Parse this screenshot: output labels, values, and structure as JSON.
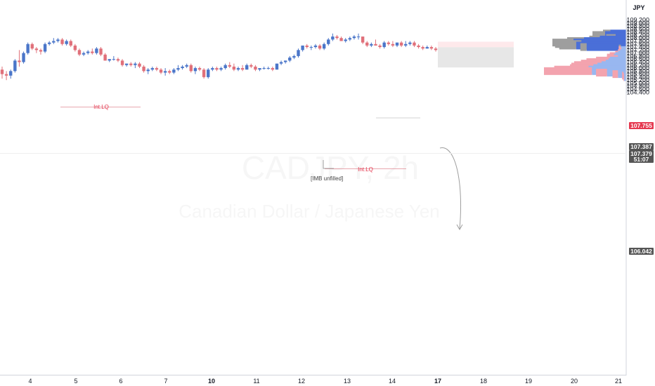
{
  "chart_data": {
    "type": "candlestick",
    "currency": "JPY",
    "watermark_title": "CADJPY, 2h",
    "watermark_subtitle": "Canadian Dollar / Japanese Yen",
    "ylim": [
      104.3,
      109.5
    ],
    "y_ticks": [
      "109.200",
      "109.000",
      "108.800",
      "108.600",
      "108.400",
      "108.200",
      "108.000",
      "107.800",
      "107.600",
      "107.400",
      "107.200",
      "107.000",
      "106.800",
      "106.600",
      "106.400",
      "106.200",
      "106.000",
      "105.800",
      "105.600",
      "105.400",
      "105.200",
      "105.000",
      "104.800",
      "104.600",
      "104.400"
    ],
    "x_ticks": [
      "4",
      "5",
      "6",
      "7",
      "10",
      "11",
      "12",
      "13",
      "14",
      "17",
      "18",
      "19",
      "20",
      "21"
    ],
    "price_tags": [
      {
        "label": "107.755",
        "color": "#e5384f"
      },
      {
        "label": "107.387",
        "color": "#555555"
      },
      {
        "label": "107.379",
        "color": "#555555"
      },
      {
        "label": "51:07",
        "color": "#555555"
      },
      {
        "label": "106.042",
        "color": "#555555"
      }
    ],
    "annotations": [
      "Int.LQ",
      "Int.LQ",
      "[IMB unfilled]"
    ],
    "colors": {
      "up": "#4b76c9",
      "down": "#e0707a",
      "sl_zone": "#fde0e3",
      "tp_zone": "#e3e3e3"
    },
    "candles": [
      [
        105.9,
        106.1,
        105.3,
        105.6
      ],
      [
        105.6,
        105.8,
        105.2,
        105.5
      ],
      [
        105.5,
        105.9,
        105.3,
        105.8
      ],
      [
        105.8,
        106.6,
        105.7,
        106.5
      ],
      [
        106.5,
        107.2,
        106.1,
        106.4
      ],
      [
        106.4,
        107.1,
        106.3,
        107.0
      ],
      [
        107.0,
        107.7,
        106.9,
        107.6
      ],
      [
        107.6,
        107.7,
        107.2,
        107.3
      ],
      [
        107.3,
        107.4,
        107.0,
        107.2
      ],
      [
        107.2,
        107.3,
        106.9,
        107.1
      ],
      [
        107.1,
        107.7,
        107.0,
        107.6
      ],
      [
        107.6,
        107.8,
        107.5,
        107.7
      ],
      [
        107.7,
        108.0,
        107.6,
        107.8
      ],
      [
        107.8,
        108.0,
        107.7,
        107.9
      ],
      [
        107.9,
        108.0,
        107.5,
        107.6
      ],
      [
        107.6,
        107.9,
        107.5,
        107.8
      ],
      [
        107.8,
        107.9,
        107.4,
        107.5
      ],
      [
        107.5,
        107.6,
        107.1,
        107.2
      ],
      [
        107.2,
        107.3,
        106.8,
        106.9
      ],
      [
        106.9,
        107.1,
        106.8,
        107.0
      ],
      [
        107.0,
        107.2,
        106.9,
        107.1
      ],
      [
        107.1,
        107.3,
        106.9,
        107.0
      ],
      [
        107.0,
        107.4,
        106.9,
        107.3
      ],
      [
        107.3,
        107.4,
        106.8,
        106.9
      ],
      [
        106.9,
        107.0,
        106.5,
        106.5
      ],
      [
        106.5,
        106.6,
        106.4,
        106.6
      ],
      [
        106.6,
        106.8,
        106.5,
        106.6
      ],
      [
        106.6,
        106.7,
        106.4,
        106.5
      ],
      [
        106.5,
        106.6,
        106.1,
        106.2
      ],
      [
        106.2,
        106.3,
        106.1,
        106.3
      ],
      [
        106.3,
        106.4,
        106.1,
        106.2
      ],
      [
        106.2,
        106.4,
        106.0,
        106.3
      ],
      [
        106.3,
        106.4,
        106.0,
        106.1
      ],
      [
        106.1,
        106.2,
        105.7,
        105.8
      ],
      [
        105.8,
        106.0,
        105.6,
        105.9
      ],
      [
        105.9,
        106.1,
        105.8,
        106.0
      ],
      [
        106.0,
        106.1,
        105.8,
        105.9
      ],
      [
        105.9,
        106.0,
        105.6,
        105.7
      ],
      [
        105.7,
        106.0,
        105.5,
        105.8
      ],
      [
        105.8,
        105.9,
        105.6,
        105.7
      ],
      [
        105.7,
        106.0,
        105.6,
        105.9
      ],
      [
        105.9,
        106.2,
        105.8,
        106.0
      ],
      [
        106.0,
        106.2,
        105.9,
        106.1
      ],
      [
        106.1,
        106.3,
        106.0,
        106.2
      ],
      [
        106.2,
        106.3,
        105.7,
        105.8
      ],
      [
        105.8,
        106.1,
        105.6,
        106.0
      ],
      [
        106.0,
        106.1,
        105.8,
        105.9
      ],
      [
        105.9,
        106.0,
        105.3,
        105.4
      ],
      [
        105.4,
        106.0,
        105.3,
        105.9
      ],
      [
        105.9,
        106.1,
        105.8,
        106.0
      ],
      [
        106.0,
        106.1,
        105.8,
        105.9
      ],
      [
        105.9,
        106.1,
        105.8,
        106.0
      ],
      [
        106.0,
        106.3,
        105.9,
        106.2
      ],
      [
        106.2,
        106.4,
        106.0,
        106.1
      ],
      [
        106.1,
        106.3,
        105.8,
        105.9
      ],
      [
        105.9,
        106.1,
        105.8,
        106.0
      ],
      [
        106.0,
        106.2,
        105.8,
        105.9
      ],
      [
        105.9,
        106.3,
        105.9,
        106.2
      ],
      [
        106.2,
        106.3,
        106.0,
        106.1
      ],
      [
        106.1,
        106.2,
        105.8,
        105.9
      ],
      [
        105.9,
        106.0,
        105.8,
        106.0
      ],
      [
        106.0,
        106.1,
        105.9,
        106.0
      ],
      [
        106.0,
        106.1,
        105.9,
        106.0
      ],
      [
        106.0,
        106.1,
        105.8,
        105.9
      ],
      [
        105.9,
        106.3,
        105.9,
        106.3
      ],
      [
        106.3,
        106.5,
        106.2,
        106.4
      ],
      [
        106.4,
        106.5,
        106.3,
        106.5
      ],
      [
        106.5,
        106.8,
        106.4,
        106.7
      ],
      [
        106.7,
        106.9,
        106.6,
        106.8
      ],
      [
        106.8,
        107.3,
        106.7,
        107.2
      ],
      [
        107.2,
        107.5,
        107.1,
        107.5
      ],
      [
        107.5,
        107.6,
        107.3,
        107.4
      ],
      [
        107.4,
        107.5,
        107.2,
        107.4
      ],
      [
        107.4,
        107.6,
        107.3,
        107.5
      ],
      [
        107.5,
        107.6,
        107.2,
        107.3
      ],
      [
        107.3,
        107.7,
        107.2,
        107.6
      ],
      [
        107.6,
        108.0,
        107.5,
        107.9
      ],
      [
        107.9,
        108.3,
        107.8,
        108.1
      ],
      [
        108.1,
        108.2,
        107.9,
        108.0
      ],
      [
        108.0,
        108.1,
        107.8,
        107.8
      ],
      [
        107.8,
        108.0,
        107.7,
        107.9
      ],
      [
        107.9,
        108.1,
        107.8,
        108.0
      ],
      [
        108.0,
        108.2,
        107.9,
        108.1
      ],
      [
        108.1,
        108.3,
        107.9,
        108.1
      ],
      [
        108.1,
        108.1,
        107.6,
        107.7
      ],
      [
        107.7,
        107.8,
        107.4,
        107.5
      ],
      [
        107.5,
        107.7,
        107.4,
        107.6
      ],
      [
        107.6,
        107.9,
        107.5,
        107.5
      ],
      [
        107.5,
        107.6,
        107.3,
        107.4
      ],
      [
        107.4,
        107.8,
        107.3,
        107.7
      ],
      [
        107.7,
        107.8,
        107.5,
        107.6
      ],
      [
        107.6,
        107.8,
        107.4,
        107.5
      ],
      [
        107.5,
        107.7,
        107.4,
        107.7
      ],
      [
        107.7,
        107.8,
        107.4,
        107.5
      ],
      [
        107.5,
        107.8,
        107.4,
        107.6
      ],
      [
        107.6,
        107.8,
        107.5,
        107.7
      ],
      [
        107.7,
        107.8,
        107.4,
        107.5
      ],
      [
        107.5,
        107.6,
        107.3,
        107.4
      ],
      [
        107.4,
        107.5,
        107.2,
        107.3
      ],
      [
        107.3,
        107.5,
        107.3,
        107.4
      ],
      [
        107.4,
        107.5,
        107.2,
        107.3
      ],
      [
        107.3,
        107.4,
        107.1,
        107.2
      ]
    ],
    "volume_profile": [
      [
        108.3,
        0.14,
        0.3
      ],
      [
        108.2,
        0.24,
        0.4
      ],
      [
        108.1,
        0.2,
        0.4
      ],
      [
        108.0,
        0.18,
        0.2
      ],
      [
        107.9,
        0.2,
        0.5
      ],
      [
        107.8,
        0.32,
        0.8
      ],
      [
        107.7,
        0.4,
        1.0
      ],
      [
        107.6,
        0.5,
        0.85
      ],
      [
        107.5,
        0.32,
        0.95
      ],
      [
        107.4,
        0.12,
        0.75
      ],
      [
        107.3,
        0.04,
        0.1
      ],
      [
        107.2,
        0.03,
        0.08
      ],
      [
        107.1,
        0.03,
        0.07
      ],
      [
        107.0,
        0.03,
        0.09
      ],
      [
        106.9,
        0.04,
        0.12
      ],
      [
        106.8,
        0.08,
        0.16
      ],
      [
        106.7,
        0.1,
        0.18
      ],
      [
        106.6,
        0.16,
        0.12
      ],
      [
        106.5,
        0.2,
        0.24
      ],
      [
        106.4,
        0.32,
        0.26
      ],
      [
        106.3,
        0.36,
        0.3
      ],
      [
        106.2,
        0.4,
        0.36
      ],
      [
        106.1,
        0.38,
        0.42
      ],
      [
        106.0,
        0.34,
        0.48
      ],
      [
        105.9,
        0.5,
        0.55
      ],
      [
        105.8,
        0.7,
        0.5
      ],
      [
        105.7,
        0.16,
        0.28
      ],
      [
        105.6,
        0.08,
        0.12
      ],
      [
        105.5,
        0.02,
        0.04
      ],
      [
        105.4,
        0.01,
        0.03
      ]
    ]
  }
}
